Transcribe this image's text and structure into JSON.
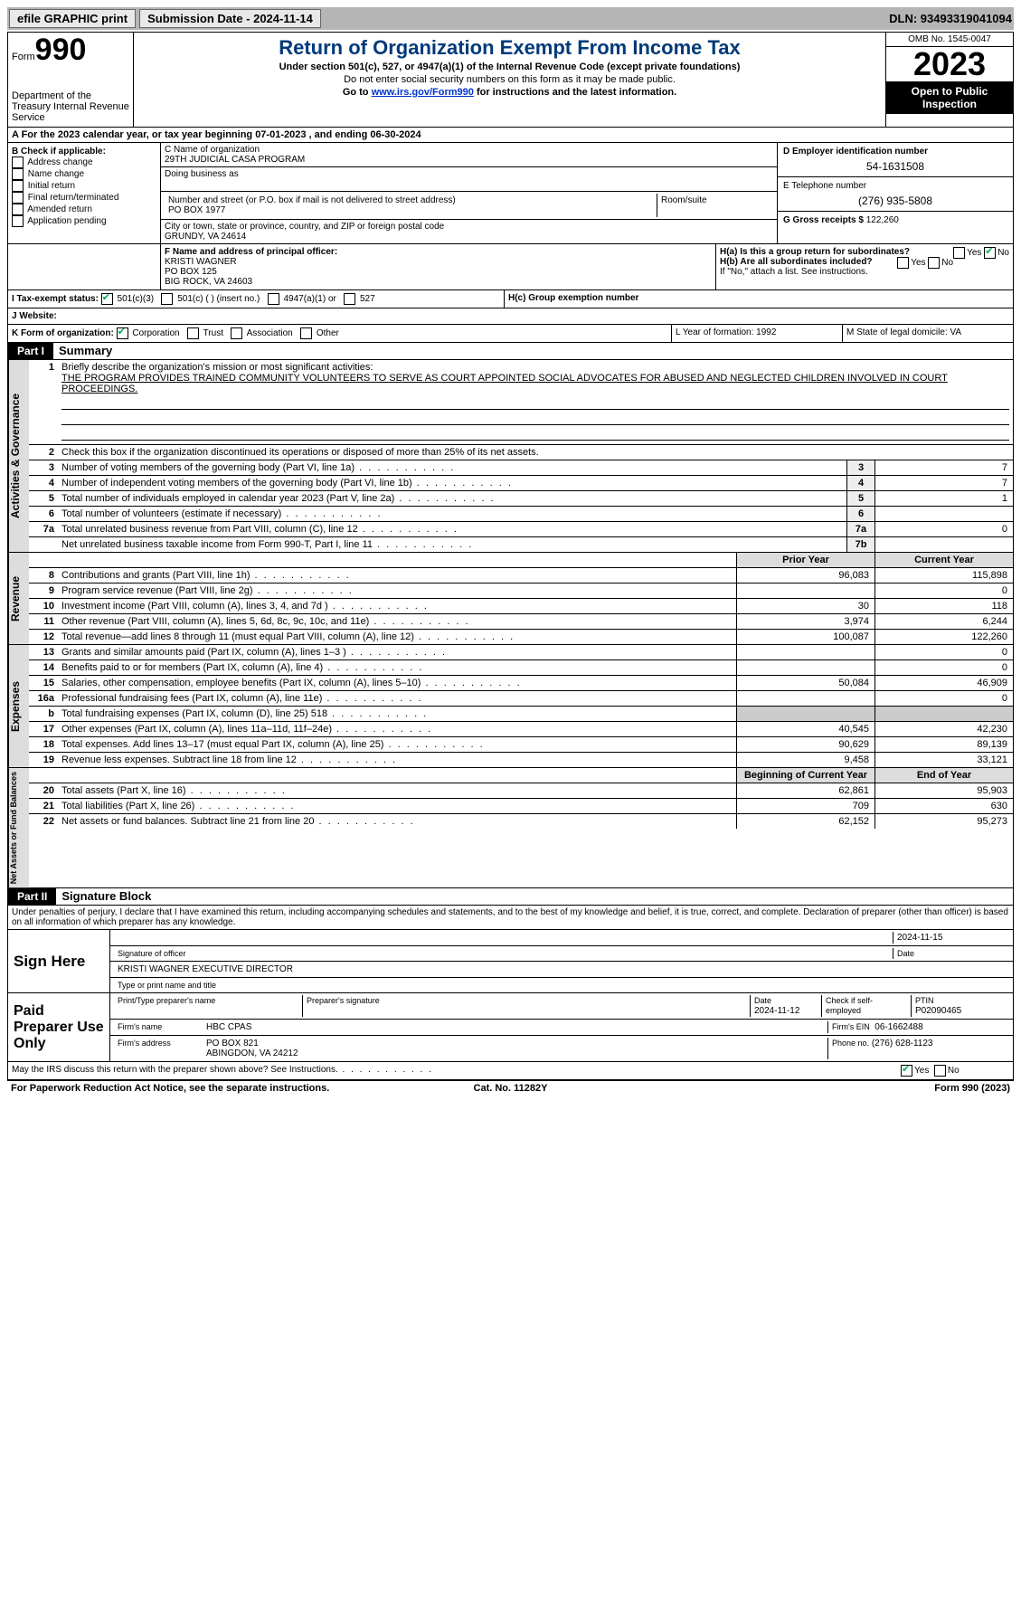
{
  "topbar": {
    "efile": "efile GRAPHIC print",
    "submission": "Submission Date - 2024-11-14",
    "dln": "DLN: 93493319041094"
  },
  "header": {
    "form": "Form",
    "num": "990",
    "title": "Return of Organization Exempt From Income Tax",
    "sub": "Under section 501(c), 527, or 4947(a)(1) of the Internal Revenue Code (except private foundations)",
    "sub2": "Do not enter social security numbers on this form as it may be made public.",
    "sub3_pre": "Go to ",
    "sub3_link": "www.irs.gov/Form990",
    "sub3_post": " for instructions and the latest information.",
    "dept": "Department of the Treasury Internal Revenue Service",
    "omb": "OMB No. 1545-0047",
    "year": "2023",
    "insp": "Open to Public Inspection"
  },
  "rowA": "A   For the 2023 calendar year, or tax year beginning 07-01-2023    , and ending 06-30-2024",
  "boxB": {
    "label": "B Check if applicable:",
    "opts": [
      "Address change",
      "Name change",
      "Initial return",
      "Final return/terminated",
      "Amended return",
      "Application pending"
    ]
  },
  "boxC": {
    "name_lbl": "C Name of organization",
    "name": "29TH JUDICIAL CASA PROGRAM",
    "dba_lbl": "Doing business as",
    "street_lbl": "Number and street (or P.O. box if mail is not delivered to street address)",
    "street": "PO BOX 1977",
    "room_lbl": "Room/suite",
    "city_lbl": "City or town, state or province, country, and ZIP or foreign postal code",
    "city": "GRUNDY, VA  24614"
  },
  "boxD": {
    "lbl": "D Employer identification number",
    "val": "54-1631508"
  },
  "boxE": {
    "lbl": "E Telephone number",
    "val": "(276) 935-5808"
  },
  "boxG": {
    "lbl": "G Gross receipts $",
    "val": "122,260"
  },
  "boxF": {
    "lbl": "F  Name and address of principal officer:",
    "l1": "KRISTI WAGNER",
    "l2": "PO BOX 125",
    "l3": "BIG ROCK, VA  24603"
  },
  "boxH": {
    "a_lbl": "H(a)  Is this a group return for subordinates?",
    "b_lbl": "H(b)  Are all subordinates included?",
    "b_note": "If \"No,\" attach a list. See instructions.",
    "c_lbl": "H(c)  Group exemption number",
    "yes": "Yes",
    "no": "No"
  },
  "boxI": {
    "lbl": "I   Tax-exempt status:",
    "o1": "501(c)(3)",
    "o2": "501(c) (  ) (insert no.)",
    "o3": "4947(a)(1) or",
    "o4": "527"
  },
  "boxJ": "J   Website:",
  "boxK": {
    "lbl": "K Form of organization:",
    "o1": "Corporation",
    "o2": "Trust",
    "o3": "Association",
    "o4": "Other"
  },
  "boxL": "L Year of formation: 1992",
  "boxM": "M State of legal domicile: VA",
  "part1": {
    "hdr": "Part I",
    "title": "Summary"
  },
  "summary": {
    "l1_lbl": "Briefly describe the organization's mission or most significant activities:",
    "l1_txt": "THE PROGRAM PROVIDES TRAINED COMMUNITY VOLUNTEERS TO SERVE AS COURT APPOINTED SOCIAL ADVOCATES FOR ABUSED AND NEGLECTED CHILDREN INVOLVED IN COURT PROCEEDINGS.",
    "l2": "Check this box          if the organization discontinued its operations or disposed of more than 25% of its net assets.",
    "rows_gov": [
      {
        "n": "3",
        "d": "Number of voting members of the governing body (Part VI, line 1a)",
        "b": "3",
        "v": "7"
      },
      {
        "n": "4",
        "d": "Number of independent voting members of the governing body (Part VI, line 1b)",
        "b": "4",
        "v": "7"
      },
      {
        "n": "5",
        "d": "Total number of individuals employed in calendar year 2023 (Part V, line 2a)",
        "b": "5",
        "v": "1"
      },
      {
        "n": "6",
        "d": "Total number of volunteers (estimate if necessary)",
        "b": "6",
        "v": ""
      },
      {
        "n": "7a",
        "d": "Total unrelated business revenue from Part VIII, column (C), line 12",
        "b": "7a",
        "v": "0"
      },
      {
        "n": "",
        "d": "Net unrelated business taxable income from Form 990-T, Part I, line 11",
        "b": "7b",
        "v": ""
      }
    ],
    "col_py": "Prior Year",
    "col_cy": "Current Year",
    "rows_rev": [
      {
        "n": "8",
        "d": "Contributions and grants (Part VIII, line 1h)",
        "py": "96,083",
        "cy": "115,898"
      },
      {
        "n": "9",
        "d": "Program service revenue (Part VIII, line 2g)",
        "py": "",
        "cy": "0"
      },
      {
        "n": "10",
        "d": "Investment income (Part VIII, column (A), lines 3, 4, and 7d )",
        "py": "30",
        "cy": "118"
      },
      {
        "n": "11",
        "d": "Other revenue (Part VIII, column (A), lines 5, 6d, 8c, 9c, 10c, and 11e)",
        "py": "3,974",
        "cy": "6,244"
      },
      {
        "n": "12",
        "d": "Total revenue—add lines 8 through 11 (must equal Part VIII, column (A), line 12)",
        "py": "100,087",
        "cy": "122,260"
      }
    ],
    "rows_exp": [
      {
        "n": "13",
        "d": "Grants and similar amounts paid (Part IX, column (A), lines 1–3 )",
        "py": "",
        "cy": "0"
      },
      {
        "n": "14",
        "d": "Benefits paid to or for members (Part IX, column (A), line 4)",
        "py": "",
        "cy": "0"
      },
      {
        "n": "15",
        "d": "Salaries, other compensation, employee benefits (Part IX, column (A), lines 5–10)",
        "py": "50,084",
        "cy": "46,909"
      },
      {
        "n": "16a",
        "d": "Professional fundraising fees (Part IX, column (A), line 11e)",
        "py": "",
        "cy": "0"
      },
      {
        "n": "b",
        "d": "Total fundraising expenses (Part IX, column (D), line 25) 518",
        "py": "GRAY",
        "cy": "GRAY"
      },
      {
        "n": "17",
        "d": "Other expenses (Part IX, column (A), lines 11a–11d, 11f–24e)",
        "py": "40,545",
        "cy": "42,230"
      },
      {
        "n": "18",
        "d": "Total expenses. Add lines 13–17 (must equal Part IX, column (A), line 25)",
        "py": "90,629",
        "cy": "89,139"
      },
      {
        "n": "19",
        "d": "Revenue less expenses. Subtract line 18 from line 12",
        "py": "9,458",
        "cy": "33,121"
      }
    ],
    "col_bcy": "Beginning of Current Year",
    "col_eoy": "End of Year",
    "rows_na": [
      {
        "n": "20",
        "d": "Total assets (Part X, line 16)",
        "py": "62,861",
        "cy": "95,903"
      },
      {
        "n": "21",
        "d": "Total liabilities (Part X, line 26)",
        "py": "709",
        "cy": "630"
      },
      {
        "n": "22",
        "d": "Net assets or fund balances. Subtract line 21 from line 20",
        "py": "62,152",
        "cy": "95,273"
      }
    ],
    "side_gov": "Activities & Governance",
    "side_rev": "Revenue",
    "side_exp": "Expenses",
    "side_na": "Net Assets or Fund Balances"
  },
  "part2": {
    "hdr": "Part II",
    "title": "Signature Block"
  },
  "sig_decl": "Under penalties of perjury, I declare that I have examined this return, including accompanying schedules and statements, and to the best of my knowledge and belief, it is true, correct, and complete. Declaration of preparer (other than officer) is based on all information of which preparer has any knowledge.",
  "sign": {
    "here": "Sign Here",
    "sig_lbl": "Signature of officer",
    "date": "2024-11-15",
    "date_lbl": "Date",
    "name": "KRISTI WAGNER  EXECUTIVE DIRECTOR",
    "name_lbl": "Type or print name and title"
  },
  "paid": {
    "lbl": "Paid Preparer Use Only",
    "c1": "Print/Type preparer's name",
    "c2": "Preparer's signature",
    "c3_lbl": "Date",
    "c3": "2024-11-12",
    "c4_lbl": "Check         if self-employed",
    "c5_lbl": "PTIN",
    "c5": "P02090465",
    "firm_lbl": "Firm's name",
    "firm": "HBC CPAS",
    "ein_lbl": "Firm's EIN",
    "ein": "06-1662488",
    "addr_lbl": "Firm's address",
    "addr1": "PO BOX 821",
    "addr2": "ABINGDON, VA  24212",
    "phone_lbl": "Phone no.",
    "phone": "(276) 628-1123"
  },
  "discuss": "May the IRS discuss this return with the preparer shown above? See Instructions.",
  "footer": {
    "l": "For Paperwork Reduction Act Notice, see the separate instructions.",
    "c": "Cat. No. 11282Y",
    "r": "Form 990 (2023)"
  }
}
